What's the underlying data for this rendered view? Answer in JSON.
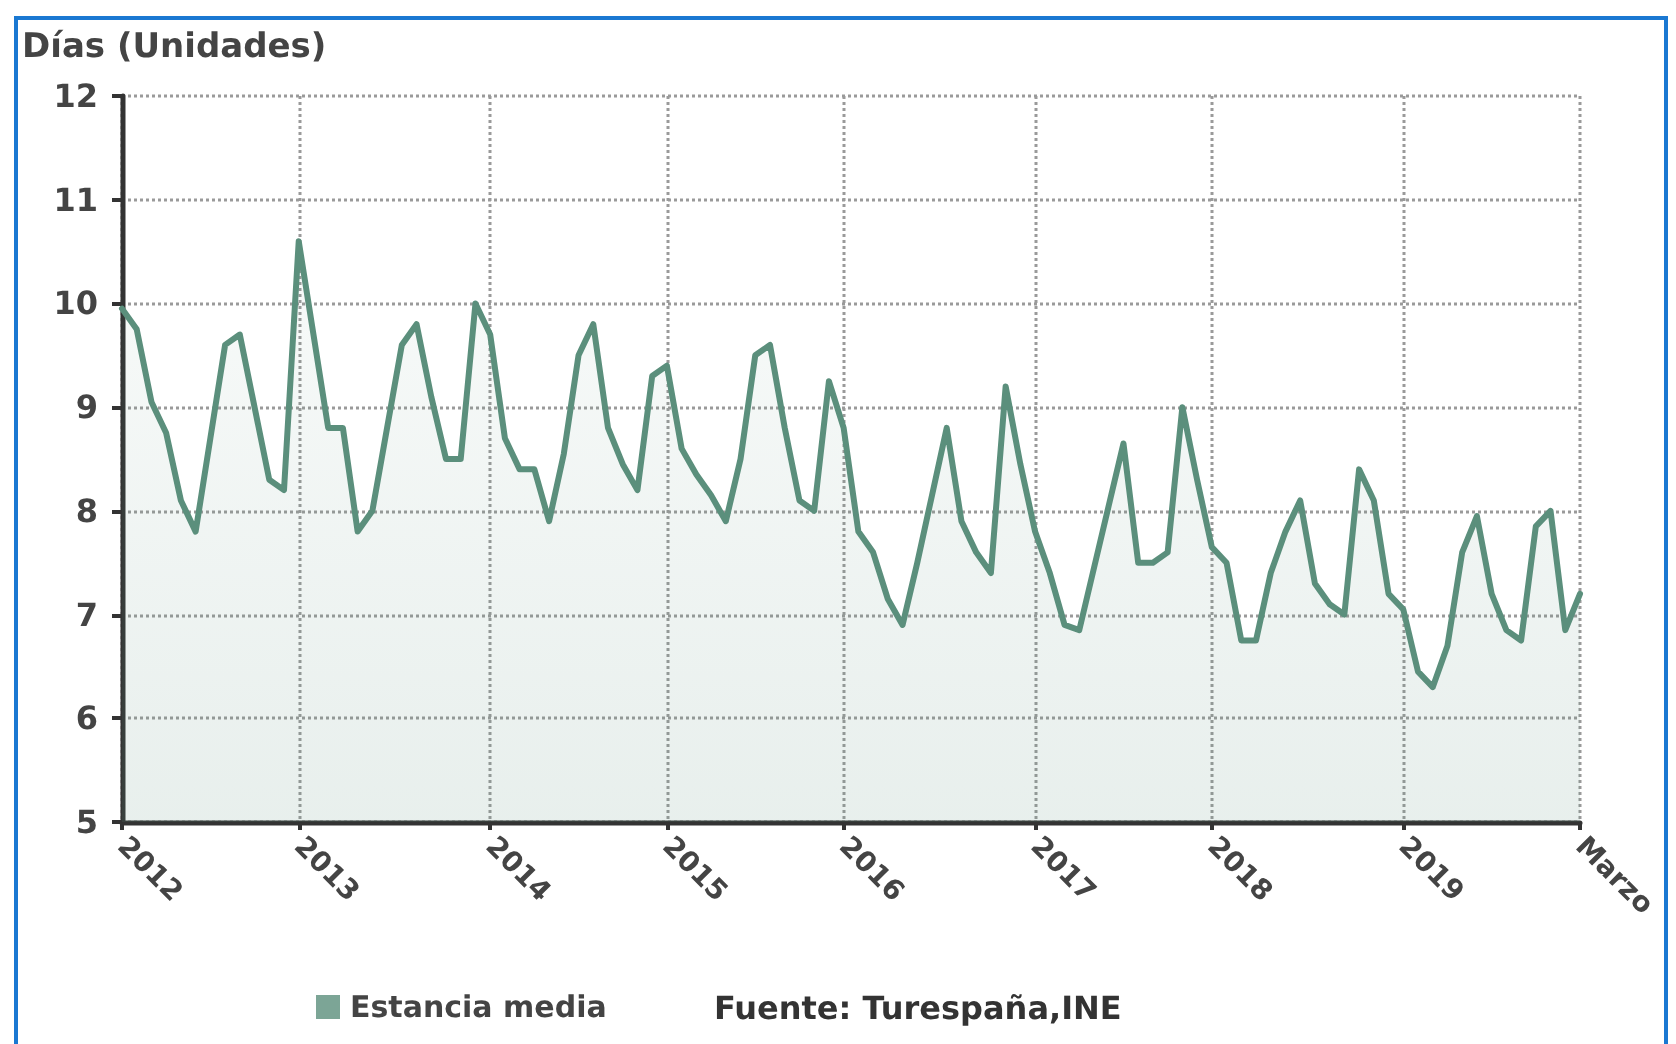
{
  "chart_data": {
    "type": "area",
    "ylabel": "Días (Unidades)",
    "annotations": [
      "Fuente: Turespaña,INE"
    ],
    "categories": [
      "2012",
      null,
      null,
      null,
      null,
      null,
      null,
      null,
      null,
      null,
      null,
      null,
      "2013",
      null,
      null,
      null,
      null,
      null,
      null,
      null,
      null,
      null,
      null,
      null,
      null,
      "2014",
      null,
      null,
      null,
      null,
      null,
      null,
      null,
      null,
      null,
      null,
      null,
      "2015",
      null,
      null,
      null,
      null,
      null,
      null,
      null,
      null,
      null,
      null,
      null,
      "2016",
      null,
      null,
      null,
      null,
      null,
      null,
      null,
      null,
      null,
      null,
      null,
      null,
      "2017",
      null,
      null,
      null,
      null,
      null,
      null,
      null,
      null,
      null,
      null,
      null,
      "2018",
      null,
      null,
      null,
      null,
      null,
      null,
      null,
      null,
      null,
      null,
      null,
      null,
      "2019",
      null,
      null,
      null,
      null,
      null,
      null,
      null,
      null,
      null,
      null,
      null,
      "Marzo"
    ],
    "series": [
      {
        "name": "Estancia media",
        "color": "#5b8f7c",
        "values": [
          9.95,
          9.75,
          9.05,
          8.75,
          8.1,
          7.8,
          8.7,
          9.6,
          9.7,
          9.0,
          8.3,
          8.2,
          10.6,
          9.7,
          8.8,
          8.8,
          7.8,
          8.0,
          8.8,
          9.6,
          9.8,
          9.1,
          8.5,
          8.5,
          10.0,
          9.7,
          8.7,
          8.4,
          8.4,
          7.9,
          8.55,
          9.5,
          9.8,
          8.8,
          8.45,
          8.2,
          9.3,
          9.4,
          8.6,
          8.35,
          8.15,
          7.9,
          8.5,
          9.5,
          9.6,
          8.8,
          8.1,
          8.0,
          9.25,
          8.8,
          7.8,
          7.6,
          7.15,
          6.9,
          7.5,
          8.15,
          8.8,
          7.9,
          7.6,
          7.4,
          9.2,
          8.45,
          7.8,
          7.4,
          6.9,
          6.85,
          7.45,
          8.05,
          8.65,
          7.5,
          7.5,
          7.6,
          9.0,
          8.3,
          7.65,
          7.5,
          6.75,
          6.75,
          7.4,
          7.8,
          8.1,
          7.3,
          7.1,
          7.0,
          8.4,
          8.1,
          7.2,
          7.05,
          6.45,
          6.3,
          6.7,
          7.6,
          7.95,
          7.2,
          6.85,
          6.75,
          7.85,
          8.0,
          6.85,
          7.2
        ]
      }
    ],
    "ylim": [
      5,
      12
    ],
    "yticks": [
      5,
      6,
      7,
      8,
      9,
      10,
      11,
      12
    ],
    "grid": true,
    "legend": "bottom"
  }
}
